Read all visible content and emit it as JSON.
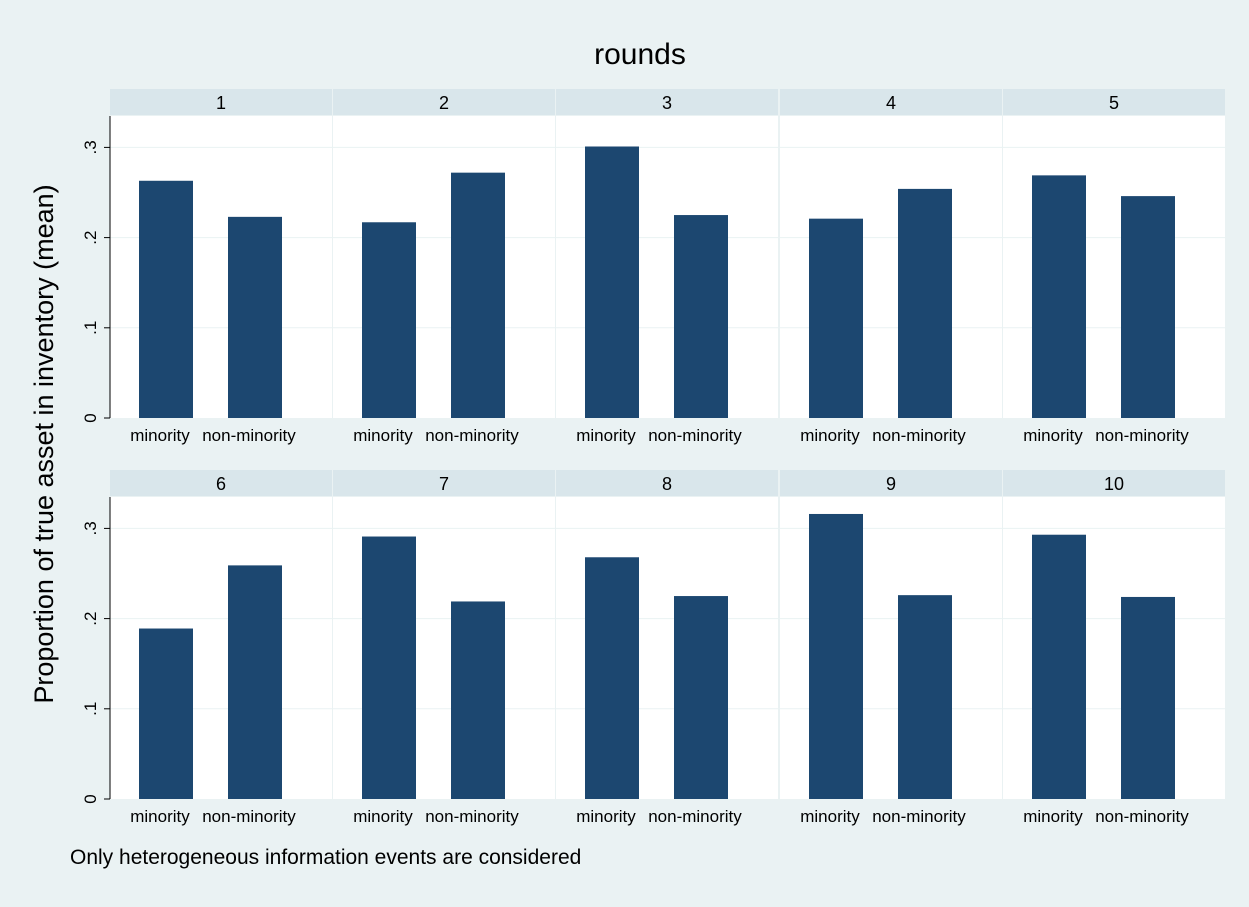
{
  "chart_data": {
    "type": "bar",
    "title": "rounds",
    "ylabel": "Proportion of true asset in inventory (mean)",
    "xlabel": "",
    "note": "Only heterogeneous information events are considered",
    "categories": [
      "minority",
      "non-minority"
    ],
    "ylim": [
      0,
      0.335
    ],
    "yticks": [
      0,
      0.1,
      0.2,
      0.3
    ],
    "ytick_labels": [
      "0",
      ".1",
      ".2",
      ".3"
    ],
    "grid": true,
    "bar_color": "#1c4770",
    "panels": [
      {
        "label": "1",
        "values": [
          0.263,
          0.223
        ]
      },
      {
        "label": "2",
        "values": [
          0.217,
          0.272
        ]
      },
      {
        "label": "3",
        "values": [
          0.301,
          0.225
        ]
      },
      {
        "label": "4",
        "values": [
          0.221,
          0.254
        ]
      },
      {
        "label": "5",
        "values": [
          0.269,
          0.246
        ]
      },
      {
        "label": "6",
        "values": [
          0.189,
          0.259
        ]
      },
      {
        "label": "7",
        "values": [
          0.291,
          0.219
        ]
      },
      {
        "label": "8",
        "values": [
          0.268,
          0.225
        ]
      },
      {
        "label": "9",
        "values": [
          0.316,
          0.226
        ]
      },
      {
        "label": "10",
        "values": [
          0.293,
          0.224
        ]
      }
    ]
  }
}
